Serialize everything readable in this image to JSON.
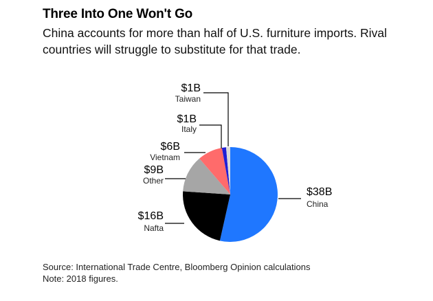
{
  "header": {
    "title": "Three Into One Won't Go",
    "subtitle": "China accounts for more than half of U.S. furniture imports. Rival countries will struggle to substitute for that trade."
  },
  "chart_data": {
    "type": "pie",
    "title": "",
    "start": "12 o'clock",
    "direction": "clockwise",
    "slices": [
      {
        "name": "China",
        "value": 38,
        "value_label": "$38B",
        "color": "#1f77ff"
      },
      {
        "name": "Nafta",
        "value": 16,
        "value_label": "$16B",
        "color": "#000000"
      },
      {
        "name": "Other",
        "value": 9,
        "value_label": "$9B",
        "color": "#a6a6a6"
      },
      {
        "name": "Vietnam",
        "value": 6,
        "value_label": "$6B",
        "color": "#ff6b6b"
      },
      {
        "name": "Italy",
        "value": 1,
        "value_label": "$1B",
        "color": "#1f1fd6"
      },
      {
        "name": "Taiwan",
        "value": 1,
        "value_label": "$1B",
        "color": "#d9d9d9"
      }
    ]
  },
  "footer": {
    "source": "Source: International Trade Centre, Bloomberg Opinion calculations",
    "note": "Note: 2018 figures."
  }
}
